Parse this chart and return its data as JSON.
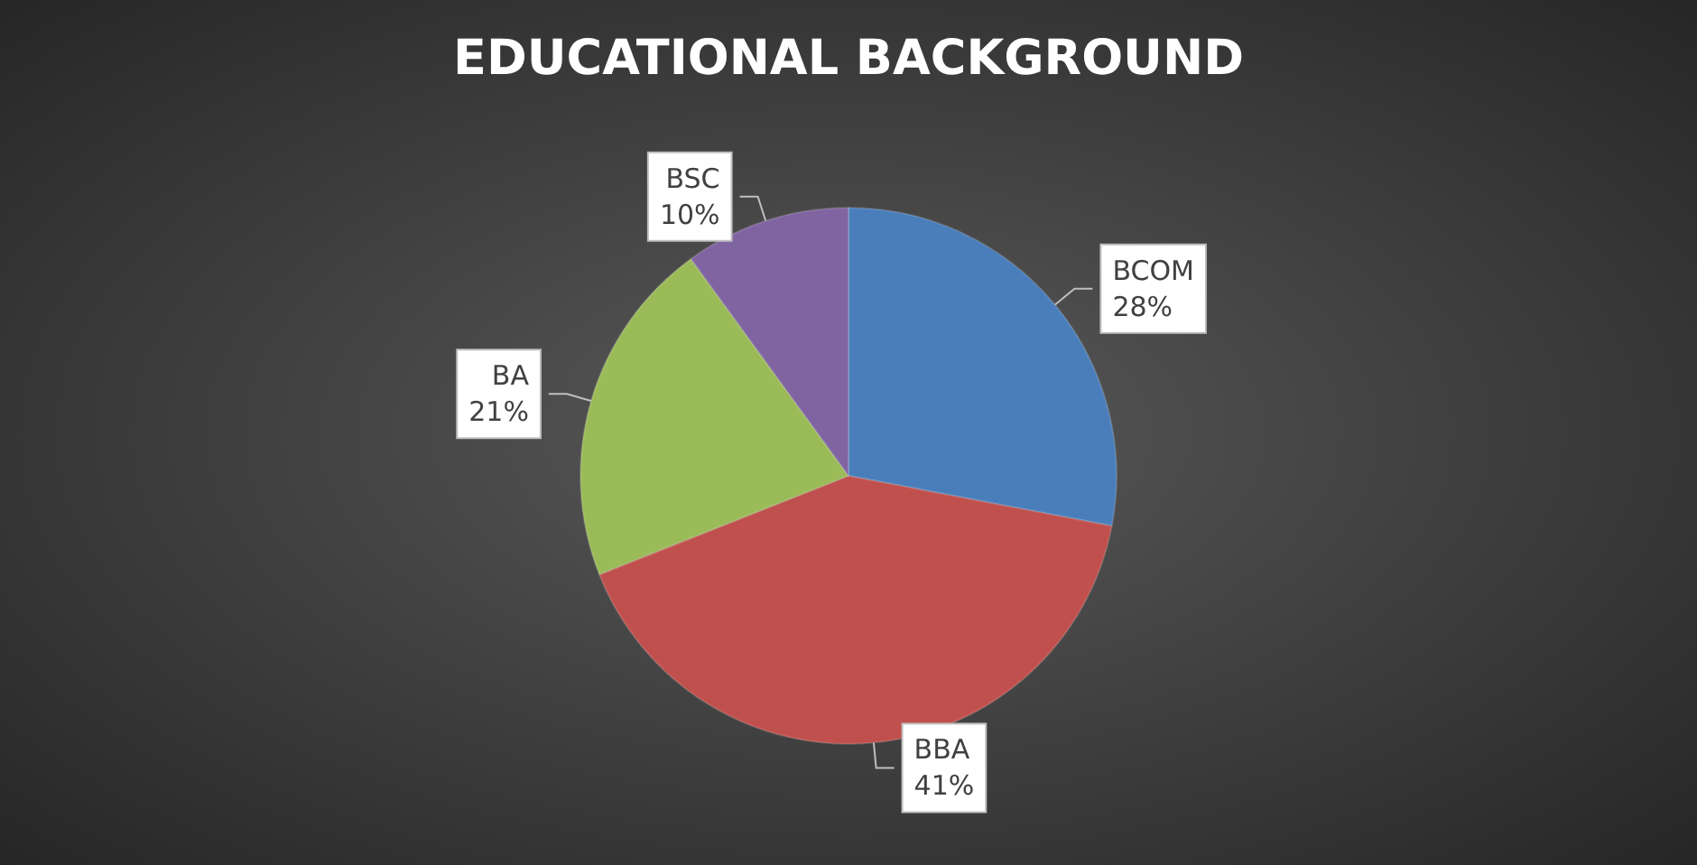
{
  "chart_data": {
    "type": "pie",
    "title": "EDUCATIONAL BACKGROUND",
    "categories": [
      "BCOM",
      "BBA",
      "BA",
      "BSC"
    ],
    "values": [
      28,
      41,
      21,
      10
    ],
    "colors": [
      "#4a7ebb",
      "#c0504d",
      "#9bbb59",
      "#8064a2"
    ],
    "value_labels": [
      "28%",
      "41%",
      "21%",
      "10%"
    ],
    "legend": false
  }
}
